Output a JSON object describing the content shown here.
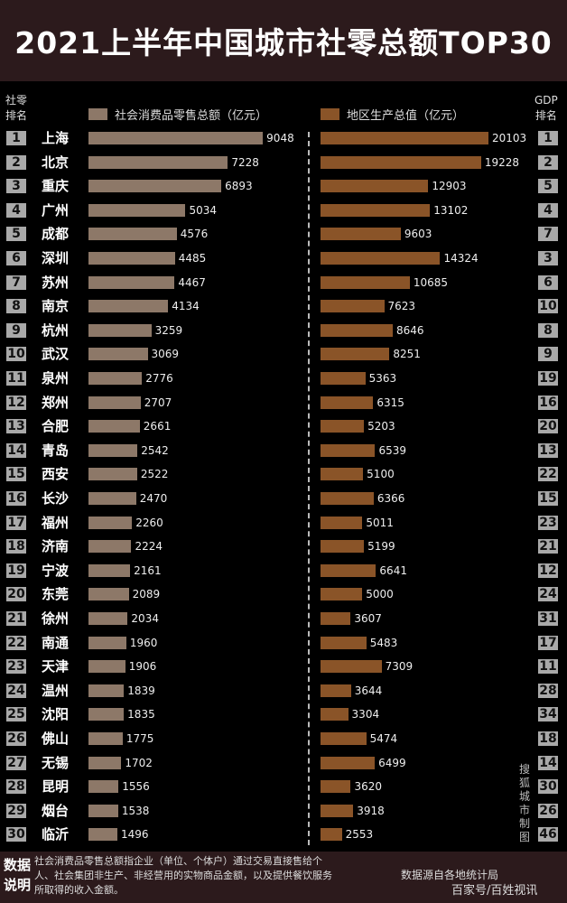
{
  "title": "2021上半年中国城市社零总额TOP30",
  "header": {
    "left_rank": "社零\n排名",
    "right_rank": "GDP\n排名"
  },
  "colors": {
    "retail": "#8d7868",
    "gdp": "#8a5428",
    "background": "#000000",
    "banner": "#2c1a1c",
    "rank_box": "#a9a9a9"
  },
  "chart_data": {
    "type": "bar",
    "title": "2021上半年中国城市社零总额TOP30",
    "categories": [
      "上海",
      "北京",
      "重庆",
      "广州",
      "成都",
      "深圳",
      "苏州",
      "南京",
      "杭州",
      "武汉",
      "泉州",
      "郑州",
      "合肥",
      "青岛",
      "西安",
      "长沙",
      "福州",
      "济南",
      "宁波",
      "东莞",
      "徐州",
      "南通",
      "天津",
      "温州",
      "沈阳",
      "佛山",
      "无锡",
      "昆明",
      "烟台",
      "临沂"
    ],
    "retail_rank": [
      "1",
      "2",
      "3",
      "4",
      "5",
      "6",
      "7",
      "8",
      "9",
      "10",
      "11",
      "12",
      "13",
      "14",
      "15",
      "16",
      "17",
      "18",
      "19",
      "20",
      "21",
      "22",
      "23",
      "24",
      "25",
      "26",
      "27",
      "28",
      "29",
      "30"
    ],
    "gdp_rank": [
      "1",
      "2",
      "5",
      "4",
      "7",
      "3",
      "6",
      "10",
      "8",
      "9",
      "19",
      "16",
      "20",
      "13",
      "22",
      "15",
      "23",
      "21",
      "12",
      "24",
      "31",
      "17",
      "11",
      "28",
      "34",
      "18",
      "14",
      "30",
      "26",
      "46"
    ],
    "series": [
      {
        "name": "社会消费品零售总额（亿元）",
        "values": [
          9048,
          7228,
          6893,
          5034,
          4576,
          4485,
          4467,
          4134,
          3259,
          3069,
          2776,
          2707,
          2661,
          2542,
          2522,
          2470,
          2260,
          2224,
          2161,
          2089,
          2034,
          1960,
          1906,
          1839,
          1835,
          1775,
          1702,
          1556,
          1538,
          1496
        ]
      },
      {
        "name": "地区生产总值（亿元）",
        "values": [
          20103,
          19228,
          12903,
          13102,
          9603,
          14324,
          10685,
          7623,
          8646,
          8251,
          5363,
          6315,
          5203,
          6539,
          5100,
          6366,
          5011,
          5199,
          6641,
          5000,
          3607,
          5483,
          7309,
          3644,
          3304,
          5474,
          6499,
          3620,
          3918,
          2553
        ]
      }
    ]
  },
  "credit": "搜狐城市制图",
  "footer": {
    "label": "数据说明",
    "note": "社会消费品零售总额指企业（单位、个体户）通过交易直接售给个人、社会集团非生产、非经营用的实物商品金额，以及提供餐饮服务所取得的收入金额。",
    "source": "数据源自各地统计局",
    "watermark": "百家号/百姓视讯"
  }
}
